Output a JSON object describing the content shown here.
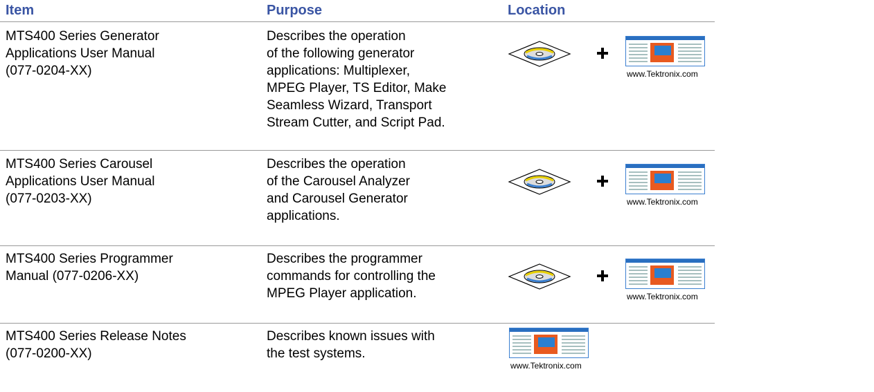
{
  "table": {
    "header": [
      "Item",
      "Purpose",
      "Location"
    ],
    "rows": [
      {
        "item": [
          "MTS400 Series Generator",
          "Applications User Manual",
          "(077-0204-XX)"
        ],
        "purpose": [
          "Describes the operation",
          "of the following generator",
          "applications:  Multiplexer,",
          "MPEG Player, TS Editor, Make",
          "Seamless Wizard, Transport",
          "Stream Cutter, and Script Pad."
        ],
        "location_caption": "www.Tektronix.com"
      },
      {
        "item": [
          "MTS400 Series Carousel",
          "Applications User Manual",
          "(077-0203-XX)"
        ],
        "purpose": [
          "Describes the operation",
          "of the Carousel Analyzer",
          "and Carousel Generator",
          "applications."
        ],
        "location_caption": "www.Tektronix.com"
      },
      {
        "item": [
          "MTS400 Series Programmer",
          "Manual (077-0206-XX)"
        ],
        "purpose": [
          "Describes the programmer",
          "commands for controlling the",
          "MPEG Player application."
        ],
        "location_caption": "www.Tektronix.com"
      },
      {
        "item": [
          "MTS400 Series Release Notes",
          "(077-0200-XX)"
        ],
        "purpose": [
          "Describes known issues with",
          "the test systems."
        ],
        "location_caption": "www.Tektronix.com"
      }
    ]
  }
}
